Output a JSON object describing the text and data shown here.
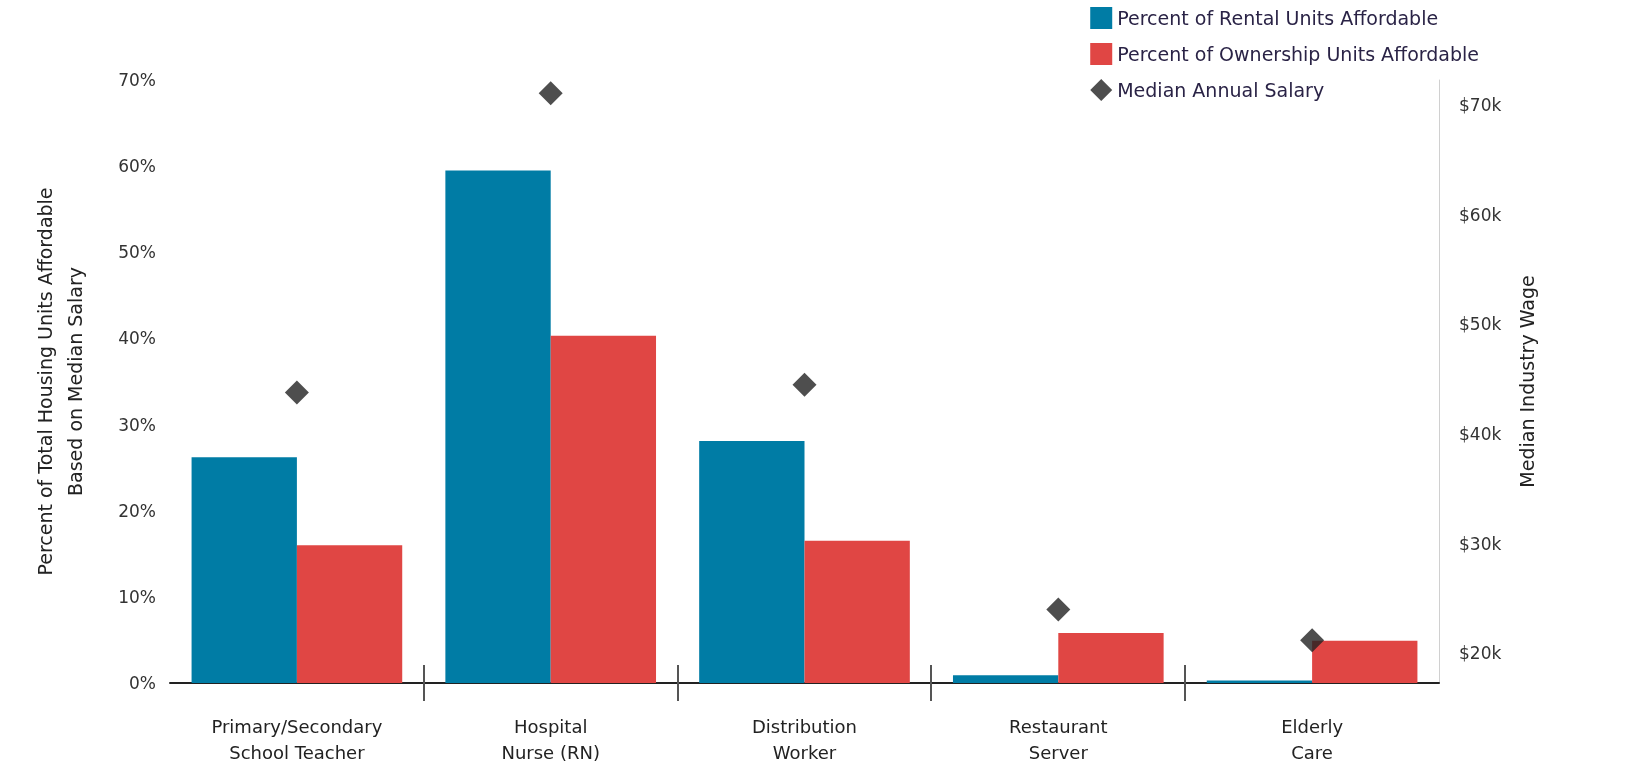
{
  "chart_data": {
    "type": "bar",
    "ylabel": "Percent of Total Housing Units Affordable\nBased on Median Salary",
    "y2label": "Median Industry Wage",
    "categories": [
      "Primary/Secondary\nSchool Teacher",
      "Hospital\nNurse (RN)",
      "Distribution\nWorker",
      "Restaurant\nServer",
      "Elderly\nCare"
    ],
    "series": [
      {
        "name": "Percent of Rental Units Affordable",
        "color": "#007ca5",
        "values": [
          26.2,
          59.5,
          28.1,
          0.9,
          0.3
        ]
      },
      {
        "name": "Percent of Ownership Units Affordable",
        "color": "#e04644",
        "values": [
          16.0,
          40.3,
          16.5,
          5.8,
          4.9
        ]
      },
      {
        "name": "Median Annual Salary",
        "type": "scatter",
        "axis": "y2",
        "color": "#222222",
        "values": [
          43800,
          71100,
          44500,
          24000,
          21200
        ]
      }
    ],
    "ylim": [
      0,
      70
    ],
    "yticks": [
      {
        "value": 0,
        "label": "0%"
      },
      {
        "value": 10,
        "label": "10%"
      },
      {
        "value": 20,
        "label": "20%"
      },
      {
        "value": 30,
        "label": "30%"
      },
      {
        "value": 40,
        "label": "40%"
      },
      {
        "value": 50,
        "label": "50%"
      },
      {
        "value": 60,
        "label": "60%"
      },
      {
        "value": 70,
        "label": "70%"
      }
    ],
    "y2lim": [
      17300,
      72300
    ],
    "y2ticks": [
      {
        "value": 20000,
        "label": "$20k"
      },
      {
        "value": 30000,
        "label": "$30k"
      },
      {
        "value": 40000,
        "label": "$40k"
      },
      {
        "value": 50000,
        "label": "$50k"
      },
      {
        "value": 60000,
        "label": "$60k"
      },
      {
        "value": 70000,
        "label": "$70k"
      }
    ],
    "marker": "diamond",
    "grid": false,
    "legend": "top right"
  }
}
